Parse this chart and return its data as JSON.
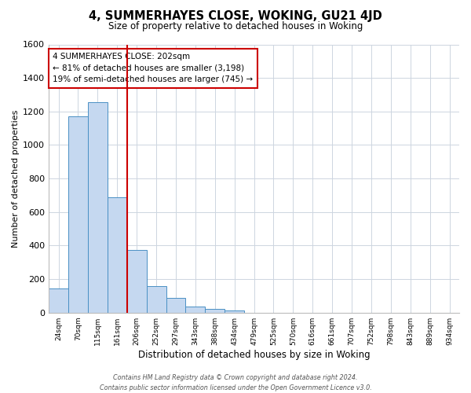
{
  "title": "4, SUMMERHAYES CLOSE, WOKING, GU21 4JD",
  "subtitle": "Size of property relative to detached houses in Woking",
  "xlabel": "Distribution of detached houses by size in Woking",
  "ylabel": "Number of detached properties",
  "bar_labels": [
    "24sqm",
    "70sqm",
    "115sqm",
    "161sqm",
    "206sqm",
    "252sqm",
    "297sqm",
    "343sqm",
    "388sqm",
    "434sqm",
    "479sqm",
    "525sqm",
    "570sqm",
    "616sqm",
    "661sqm",
    "707sqm",
    "752sqm",
    "798sqm",
    "843sqm",
    "889sqm",
    "934sqm"
  ],
  "bar_values": [
    145,
    1170,
    1255,
    690,
    375,
    160,
    90,
    35,
    20,
    15,
    0,
    0,
    0,
    0,
    0,
    0,
    0,
    0,
    0,
    0,
    0
  ],
  "bar_color": "#c5d8f0",
  "bar_edge_color": "#4a90c4",
  "vline_color": "#cc0000",
  "vline_pos": 3.5,
  "ylim": [
    0,
    1600
  ],
  "yticks": [
    0,
    200,
    400,
    600,
    800,
    1000,
    1200,
    1400,
    1600
  ],
  "annotation_title": "4 SUMMERHAYES CLOSE: 202sqm",
  "annotation_line1": "← 81% of detached houses are smaller (3,198)",
  "annotation_line2": "19% of semi-detached houses are larger (745) →",
  "annotation_box_color": "#ffffff",
  "annotation_box_edge": "#cc0000",
  "footer1": "Contains HM Land Registry data © Crown copyright and database right 2024.",
  "footer2": "Contains public sector information licensed under the Open Government Licence v3.0.",
  "background_color": "#ffffff",
  "grid_color": "#cdd5e0"
}
